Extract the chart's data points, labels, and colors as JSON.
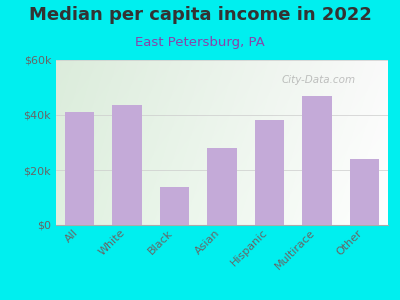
{
  "title": "Median per capita income in 2022",
  "subtitle": "East Petersburg, PA",
  "categories": [
    "All",
    "White",
    "Black",
    "Asian",
    "Hispanic",
    "Multirace",
    "Other"
  ],
  "values": [
    41000,
    43500,
    14000,
    28000,
    38000,
    47000,
    24000
  ],
  "bar_color": "#c4aad8",
  "background_color": "#00EFEF",
  "plot_bg_gradient_left": "#dff0df",
  "plot_bg_gradient_right": "#f8fff8",
  "title_color": "#333333",
  "subtitle_color": "#8844aa",
  "tick_label_color": "#666666",
  "ylim": [
    0,
    60000
  ],
  "yticks": [
    0,
    20000,
    40000,
    60000
  ],
  "ytick_labels": [
    "$0",
    "$20k",
    "$40k",
    "$60k"
  ],
  "watermark": "City-Data.com",
  "title_fontsize": 13,
  "subtitle_fontsize": 9.5,
  "tick_fontsize": 8
}
